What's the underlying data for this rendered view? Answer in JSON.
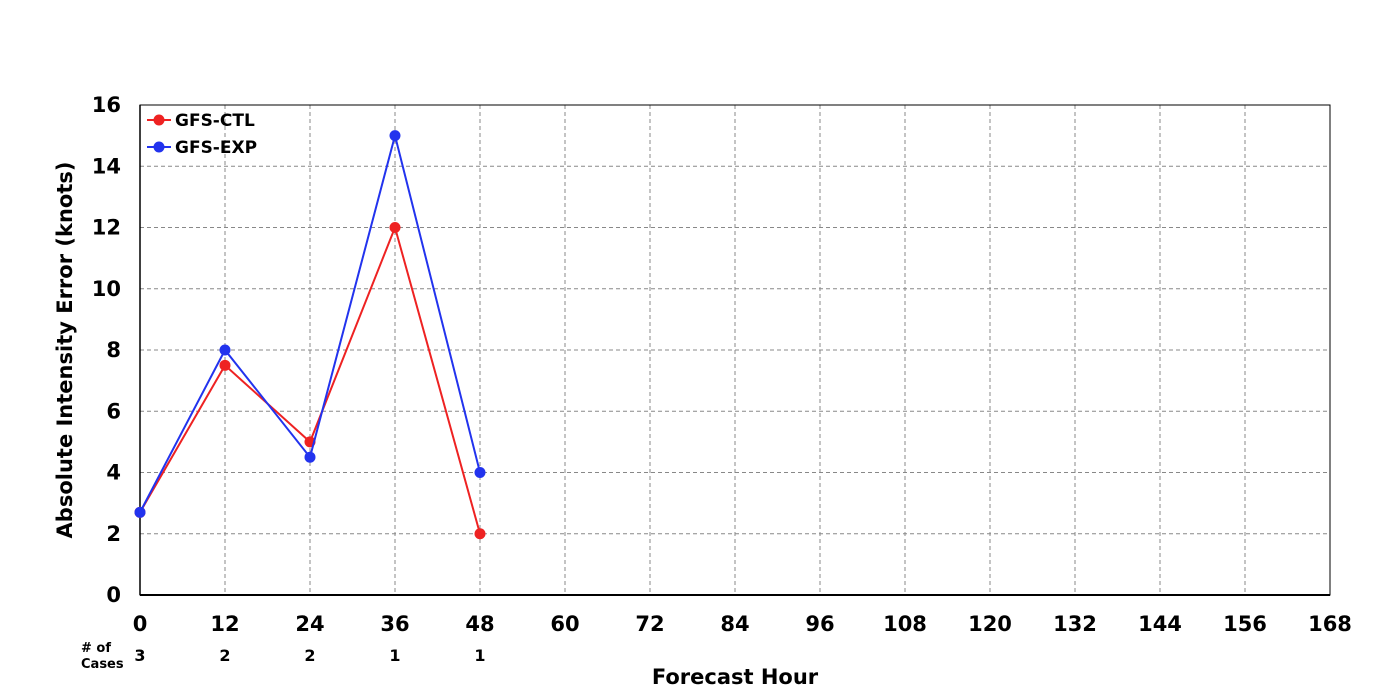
{
  "chart_data": {
    "type": "line",
    "xlabel": "Forecast Hour",
    "ylabel": "Absolute Intensity Error (knots)",
    "xlim": [
      0,
      168
    ],
    "ylim": [
      0,
      16
    ],
    "x_ticks": [
      0,
      12,
      24,
      36,
      48,
      60,
      72,
      84,
      96,
      108,
      120,
      132,
      144,
      156,
      168
    ],
    "y_ticks": [
      0,
      2,
      4,
      6,
      8,
      10,
      12,
      14,
      16
    ],
    "grid": true,
    "legend_position": "top-left",
    "cases_label": "# of\nCases",
    "cases": [
      {
        "x": 0,
        "n": "3"
      },
      {
        "x": 12,
        "n": "2"
      },
      {
        "x": 24,
        "n": "2"
      },
      {
        "x": 36,
        "n": "1"
      },
      {
        "x": 48,
        "n": "1"
      }
    ],
    "series": [
      {
        "name": "GFS-CTL",
        "color": "#ee2222",
        "x": [
          0,
          12,
          24,
          36,
          48
        ],
        "values": [
          2.7,
          7.5,
          5.0,
          12.0,
          2.0
        ]
      },
      {
        "name": "GFS-EXP",
        "color": "#2233ee",
        "x": [
          0,
          12,
          24,
          36,
          48
        ],
        "values": [
          2.7,
          8.0,
          4.5,
          15.0,
          4.0
        ]
      }
    ]
  }
}
